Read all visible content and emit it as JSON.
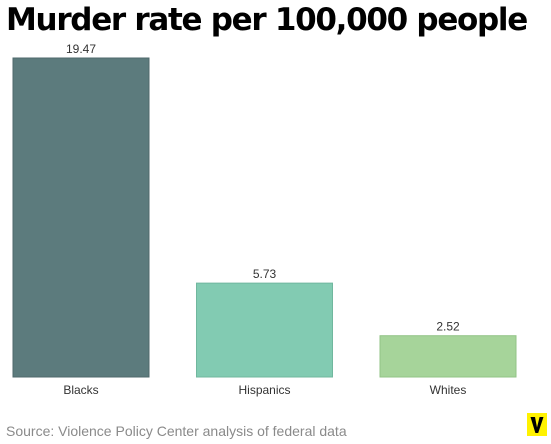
{
  "title": "Murder rate per 100,000 people",
  "source": "Source: Violence Policy Center analysis of federal data",
  "logo": {
    "icon": "vox-v-logo",
    "letter": "V",
    "background": "#fff200",
    "color": "#000000"
  },
  "chart_data": {
    "type": "bar",
    "categories": [
      "Blacks",
      "Hispanics",
      "Whites"
    ],
    "values": [
      19.47,
      5.73,
      2.52
    ],
    "value_labels": [
      "19.47",
      "5.73",
      "2.52"
    ],
    "colors": [
      "#5c7b7d",
      "#82cbb2",
      "#a6d49a"
    ],
    "stroke_colors": [
      "#4f6a6c",
      "#70b79e",
      "#92c386"
    ],
    "ylim": [
      0,
      19.47
    ],
    "grid": false,
    "legend": "none"
  }
}
